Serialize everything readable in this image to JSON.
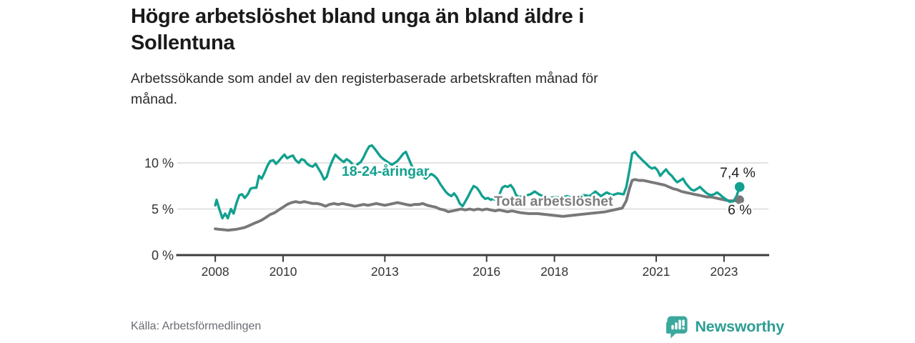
{
  "header": {
    "title": "Högre arbetslöshet bland unga än bland äldre i Sollentuna",
    "title_lines": [
      "Högre arbetslöshet bland unga än bland äldre i",
      "Sollentuna"
    ],
    "subtitle": "Arbetssökande som andel av den registerbaserade arbetskraften månad för månad.",
    "subtitle_lines": [
      "Arbetssökande som andel av den registerbaserade arbetskraften månad för",
      "månad."
    ]
  },
  "footer": {
    "source": "Källa: Arbetsförmedlingen",
    "brand": "Newsworthy"
  },
  "colors": {
    "youth": "#12a08f",
    "total": "#78787b",
    "total_label": "#7d7d80",
    "value_label": "#1f1f1f",
    "axis": "#3c3c3c",
    "grid": "#d9d9d9",
    "tick_text": "#333333",
    "source_text": "#6b6b74",
    "brand_teal": "#2d9e94",
    "brand_icon": "#3ba89d"
  },
  "chart_data": {
    "type": "line",
    "title": "Högre arbetslöshet bland unga än bland äldre i Sollentuna",
    "subtitle": "Arbetssökande som andel av den registerbaserade arbetskraften månad för månad.",
    "source": "Källa: Arbetsförmedlingen",
    "unit": "%",
    "x_unit": "year (monthly observations)",
    "grid": "horizontal",
    "legend": "inline-labels",
    "x_range": [
      2006.88,
      2024.31
    ],
    "y_range": [
      0,
      12.6
    ],
    "x_ticks": [
      {
        "value": 2008,
        "label": "2008"
      },
      {
        "value": 2010,
        "label": "2010"
      },
      {
        "value": 2013,
        "label": "2013"
      },
      {
        "value": 2016,
        "label": "2016"
      },
      {
        "value": 2018,
        "label": "2018"
      },
      {
        "value": 2021,
        "label": "2021"
      },
      {
        "value": 2023,
        "label": "2023"
      }
    ],
    "y_ticks": [
      {
        "value": 0,
        "label": "0 %"
      },
      {
        "value": 5,
        "label": "5 %"
      },
      {
        "value": 10,
        "label": "10 %"
      }
    ],
    "series": [
      {
        "name": "18-24-åringar",
        "color": "#12a08f",
        "end_label": "7,4 %",
        "end_value": 7.4,
        "points": [
          [
            2008.0,
            5.4
          ],
          [
            2008.04,
            6.0
          ],
          [
            2008.12,
            5.0
          ],
          [
            2008.21,
            4.0
          ],
          [
            2008.29,
            4.5
          ],
          [
            2008.37,
            4.0
          ],
          [
            2008.46,
            5.0
          ],
          [
            2008.54,
            4.5
          ],
          [
            2008.62,
            5.6
          ],
          [
            2008.71,
            6.5
          ],
          [
            2008.79,
            6.6
          ],
          [
            2008.87,
            6.2
          ],
          [
            2008.96,
            6.6
          ],
          [
            2009.04,
            7.2
          ],
          [
            2009.12,
            7.3
          ],
          [
            2009.21,
            7.3
          ],
          [
            2009.29,
            8.6
          ],
          [
            2009.37,
            8.3
          ],
          [
            2009.46,
            9.0
          ],
          [
            2009.54,
            9.7
          ],
          [
            2009.62,
            10.2
          ],
          [
            2009.71,
            10.3
          ],
          [
            2009.79,
            9.9
          ],
          [
            2009.87,
            10.2
          ],
          [
            2009.96,
            10.6
          ],
          [
            2010.04,
            10.9
          ],
          [
            2010.12,
            10.5
          ],
          [
            2010.21,
            10.7
          ],
          [
            2010.29,
            10.8
          ],
          [
            2010.37,
            10.3
          ],
          [
            2010.46,
            10.0
          ],
          [
            2010.54,
            10.4
          ],
          [
            2010.62,
            10.3
          ],
          [
            2010.71,
            9.9
          ],
          [
            2010.79,
            9.7
          ],
          [
            2010.87,
            9.6
          ],
          [
            2010.96,
            9.9
          ],
          [
            2011.04,
            9.4
          ],
          [
            2011.12,
            8.9
          ],
          [
            2011.21,
            8.2
          ],
          [
            2011.29,
            8.5
          ],
          [
            2011.37,
            9.5
          ],
          [
            2011.46,
            10.3
          ],
          [
            2011.54,
            10.9
          ],
          [
            2011.62,
            10.6
          ],
          [
            2011.71,
            10.3
          ],
          [
            2011.79,
            10.1
          ],
          [
            2011.87,
            10.4
          ],
          [
            2011.96,
            10.2
          ],
          [
            2012.04,
            9.9
          ],
          [
            2012.12,
            9.6
          ],
          [
            2012.21,
            9.9
          ],
          [
            2012.29,
            10.1
          ],
          [
            2012.37,
            10.6
          ],
          [
            2012.46,
            11.3
          ],
          [
            2012.54,
            11.8
          ],
          [
            2012.62,
            11.9
          ],
          [
            2012.71,
            11.5
          ],
          [
            2012.79,
            11.1
          ],
          [
            2012.87,
            10.7
          ],
          [
            2012.96,
            10.4
          ],
          [
            2013.04,
            10.2
          ],
          [
            2013.12,
            10.0
          ],
          [
            2013.21,
            9.8
          ],
          [
            2013.29,
            10.0
          ],
          [
            2013.37,
            10.2
          ],
          [
            2013.46,
            10.6
          ],
          [
            2013.54,
            11.0
          ],
          [
            2013.62,
            11.2
          ],
          [
            2013.71,
            10.4
          ],
          [
            2013.79,
            9.7
          ],
          [
            2013.87,
            9.2
          ],
          [
            2013.96,
            8.9
          ],
          [
            2014.04,
            8.7
          ],
          [
            2014.12,
            8.5
          ],
          [
            2014.21,
            8.3
          ],
          [
            2014.29,
            8.6
          ],
          [
            2014.37,
            8.8
          ],
          [
            2014.46,
            8.6
          ],
          [
            2014.54,
            8.3
          ],
          [
            2014.62,
            7.8
          ],
          [
            2014.71,
            7.3
          ],
          [
            2014.79,
            6.9
          ],
          [
            2014.87,
            6.6
          ],
          [
            2014.96,
            6.4
          ],
          [
            2015.04,
            6.7
          ],
          [
            2015.12,
            6.3
          ],
          [
            2015.21,
            5.6
          ],
          [
            2015.29,
            5.3
          ],
          [
            2015.37,
            5.8
          ],
          [
            2015.46,
            6.4
          ],
          [
            2015.54,
            7.0
          ],
          [
            2015.62,
            7.5
          ],
          [
            2015.71,
            7.3
          ],
          [
            2015.79,
            6.9
          ],
          [
            2015.87,
            6.4
          ],
          [
            2015.96,
            6.1
          ],
          [
            2016.04,
            6.2
          ],
          [
            2016.12,
            6.0
          ],
          [
            2016.21,
            6.1
          ],
          [
            2016.29,
            5.9
          ],
          [
            2016.37,
            6.5
          ],
          [
            2016.46,
            7.3
          ],
          [
            2016.54,
            7.5
          ],
          [
            2016.62,
            7.4
          ],
          [
            2016.71,
            7.6
          ],
          [
            2016.79,
            7.2
          ],
          [
            2016.87,
            6.5
          ],
          [
            2016.96,
            6.3
          ],
          [
            2017.12,
            6.4
          ],
          [
            2017.29,
            6.6
          ],
          [
            2017.42,
            6.9
          ],
          [
            2017.54,
            6.6
          ],
          [
            2017.71,
            6.3
          ],
          [
            2017.87,
            6.2
          ],
          [
            2018.04,
            6.3
          ],
          [
            2018.21,
            6.2
          ],
          [
            2018.37,
            6.4
          ],
          [
            2018.54,
            6.2
          ],
          [
            2018.71,
            6.3
          ],
          [
            2018.87,
            6.5
          ],
          [
            2019.04,
            6.4
          ],
          [
            2019.21,
            6.9
          ],
          [
            2019.37,
            6.4
          ],
          [
            2019.54,
            6.8
          ],
          [
            2019.71,
            6.5
          ],
          [
            2019.87,
            6.7
          ],
          [
            2020.04,
            6.6
          ],
          [
            2020.12,
            7.4
          ],
          [
            2020.21,
            9.2
          ],
          [
            2020.29,
            11.0
          ],
          [
            2020.37,
            11.2
          ],
          [
            2020.46,
            10.8
          ],
          [
            2020.54,
            10.5
          ],
          [
            2020.62,
            10.2
          ],
          [
            2020.71,
            9.9
          ],
          [
            2020.79,
            9.6
          ],
          [
            2020.87,
            9.4
          ],
          [
            2020.96,
            9.5
          ],
          [
            2021.04,
            9.2
          ],
          [
            2021.12,
            8.6
          ],
          [
            2021.21,
            9.0
          ],
          [
            2021.29,
            9.3
          ],
          [
            2021.37,
            8.9
          ],
          [
            2021.46,
            8.6
          ],
          [
            2021.54,
            8.2
          ],
          [
            2021.62,
            7.9
          ],
          [
            2021.71,
            8.1
          ],
          [
            2021.79,
            8.3
          ],
          [
            2021.87,
            7.8
          ],
          [
            2021.96,
            7.4
          ],
          [
            2022.04,
            7.1
          ],
          [
            2022.12,
            7.0
          ],
          [
            2022.21,
            7.2
          ],
          [
            2022.29,
            7.4
          ],
          [
            2022.37,
            7.1
          ],
          [
            2022.46,
            6.8
          ],
          [
            2022.54,
            6.6
          ],
          [
            2022.62,
            6.5
          ],
          [
            2022.71,
            6.6
          ],
          [
            2022.79,
            6.8
          ],
          [
            2022.87,
            6.6
          ],
          [
            2022.96,
            6.3
          ],
          [
            2023.04,
            6.1
          ],
          [
            2023.12,
            5.9
          ],
          [
            2023.21,
            5.7
          ],
          [
            2023.29,
            5.9
          ],
          [
            2023.37,
            6.4
          ],
          [
            2023.46,
            7.4
          ]
        ]
      },
      {
        "name": "Total arbetslöshet",
        "color": "#78787b",
        "end_label": "6 %",
        "end_value": 6.0,
        "points": [
          [
            2008.0,
            2.85
          ],
          [
            2008.12,
            2.8
          ],
          [
            2008.25,
            2.75
          ],
          [
            2008.37,
            2.7
          ],
          [
            2008.5,
            2.75
          ],
          [
            2008.62,
            2.8
          ],
          [
            2008.75,
            2.9
          ],
          [
            2008.87,
            3.0
          ],
          [
            2009.0,
            3.2
          ],
          [
            2009.12,
            3.4
          ],
          [
            2009.25,
            3.6
          ],
          [
            2009.37,
            3.8
          ],
          [
            2009.5,
            4.1
          ],
          [
            2009.62,
            4.4
          ],
          [
            2009.75,
            4.6
          ],
          [
            2009.87,
            4.9
          ],
          [
            2010.0,
            5.2
          ],
          [
            2010.12,
            5.5
          ],
          [
            2010.25,
            5.7
          ],
          [
            2010.37,
            5.8
          ],
          [
            2010.5,
            5.7
          ],
          [
            2010.62,
            5.8
          ],
          [
            2010.75,
            5.7
          ],
          [
            2010.87,
            5.6
          ],
          [
            2011.0,
            5.6
          ],
          [
            2011.12,
            5.5
          ],
          [
            2011.25,
            5.3
          ],
          [
            2011.37,
            5.5
          ],
          [
            2011.5,
            5.6
          ],
          [
            2011.62,
            5.5
          ],
          [
            2011.75,
            5.6
          ],
          [
            2011.87,
            5.5
          ],
          [
            2012.0,
            5.4
          ],
          [
            2012.12,
            5.3
          ],
          [
            2012.25,
            5.4
          ],
          [
            2012.37,
            5.5
          ],
          [
            2012.5,
            5.4
          ],
          [
            2012.62,
            5.5
          ],
          [
            2012.75,
            5.6
          ],
          [
            2012.87,
            5.5
          ],
          [
            2013.0,
            5.4
          ],
          [
            2013.12,
            5.5
          ],
          [
            2013.25,
            5.6
          ],
          [
            2013.37,
            5.7
          ],
          [
            2013.5,
            5.6
          ],
          [
            2013.62,
            5.5
          ],
          [
            2013.75,
            5.4
          ],
          [
            2013.87,
            5.5
          ],
          [
            2014.0,
            5.5
          ],
          [
            2014.12,
            5.6
          ],
          [
            2014.25,
            5.4
          ],
          [
            2014.37,
            5.3
          ],
          [
            2014.5,
            5.2
          ],
          [
            2014.62,
            5.0
          ],
          [
            2014.75,
            4.9
          ],
          [
            2014.87,
            4.7
          ],
          [
            2015.0,
            4.8
          ],
          [
            2015.12,
            4.9
          ],
          [
            2015.25,
            5.0
          ],
          [
            2015.37,
            4.9
          ],
          [
            2015.5,
            5.0
          ],
          [
            2015.62,
            4.9
          ],
          [
            2015.75,
            5.0
          ],
          [
            2015.87,
            4.9
          ],
          [
            2016.0,
            5.0
          ],
          [
            2016.12,
            4.9
          ],
          [
            2016.25,
            4.8
          ],
          [
            2016.37,
            4.9
          ],
          [
            2016.5,
            4.8
          ],
          [
            2016.62,
            4.7
          ],
          [
            2016.75,
            4.8
          ],
          [
            2016.87,
            4.7
          ],
          [
            2017.0,
            4.6
          ],
          [
            2017.25,
            4.5
          ],
          [
            2017.5,
            4.5
          ],
          [
            2017.75,
            4.4
          ],
          [
            2018.0,
            4.3
          ],
          [
            2018.25,
            4.2
          ],
          [
            2018.5,
            4.3
          ],
          [
            2018.75,
            4.4
          ],
          [
            2019.0,
            4.5
          ],
          [
            2019.25,
            4.6
          ],
          [
            2019.5,
            4.7
          ],
          [
            2019.75,
            4.9
          ],
          [
            2020.0,
            5.1
          ],
          [
            2020.12,
            5.9
          ],
          [
            2020.21,
            7.2
          ],
          [
            2020.29,
            8.1
          ],
          [
            2020.37,
            8.2
          ],
          [
            2020.5,
            8.1
          ],
          [
            2020.62,
            8.1
          ],
          [
            2020.75,
            8.0
          ],
          [
            2020.87,
            7.9
          ],
          [
            2021.0,
            7.8
          ],
          [
            2021.12,
            7.7
          ],
          [
            2021.25,
            7.6
          ],
          [
            2021.37,
            7.4
          ],
          [
            2021.5,
            7.2
          ],
          [
            2021.62,
            7.1
          ],
          [
            2021.75,
            6.9
          ],
          [
            2021.87,
            6.8
          ],
          [
            2022.0,
            6.7
          ],
          [
            2022.12,
            6.6
          ],
          [
            2022.25,
            6.5
          ],
          [
            2022.37,
            6.4
          ],
          [
            2022.5,
            6.3
          ],
          [
            2022.62,
            6.3
          ],
          [
            2022.75,
            6.2
          ],
          [
            2022.87,
            6.1
          ],
          [
            2023.0,
            6.0
          ],
          [
            2023.12,
            5.9
          ],
          [
            2023.25,
            5.9
          ],
          [
            2023.37,
            5.9
          ],
          [
            2023.46,
            6.0
          ]
        ]
      }
    ]
  }
}
